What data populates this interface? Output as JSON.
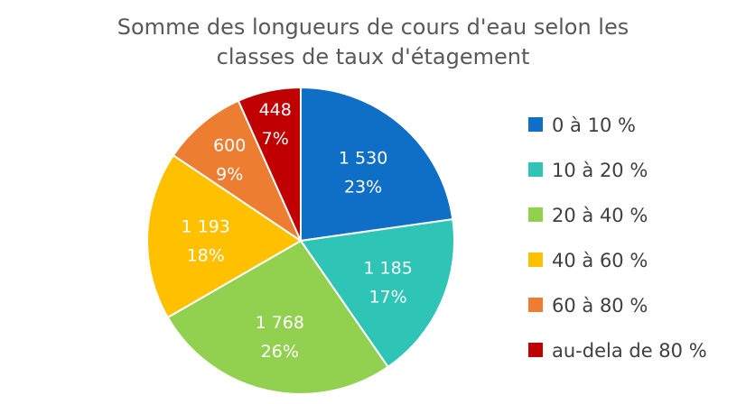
{
  "chart_data": {
    "type": "pie",
    "title_lines": [
      "Somme des longueurs de cours d'eau selon les",
      "classes de taux d'étagement"
    ],
    "categories": [
      "0 à 10 %",
      "10 à 20 %",
      "20 à 40 %",
      "40 à 60 %",
      "60 à 80 %",
      "au-dela de 80 %"
    ],
    "values": [
      1530,
      1185,
      1768,
      1193,
      600,
      448
    ],
    "value_labels": [
      "1 530",
      "1 185",
      "1 768",
      "1 193",
      "600",
      "448"
    ],
    "percent_labels": [
      "23%",
      "17%",
      "26%",
      "18%",
      "9%",
      "7%"
    ],
    "colors": [
      "#0f6fc6",
      "#2ec4b6",
      "#92d050",
      "#ffc000",
      "#ed7d31",
      "#c00000"
    ],
    "legend_position": "right"
  }
}
